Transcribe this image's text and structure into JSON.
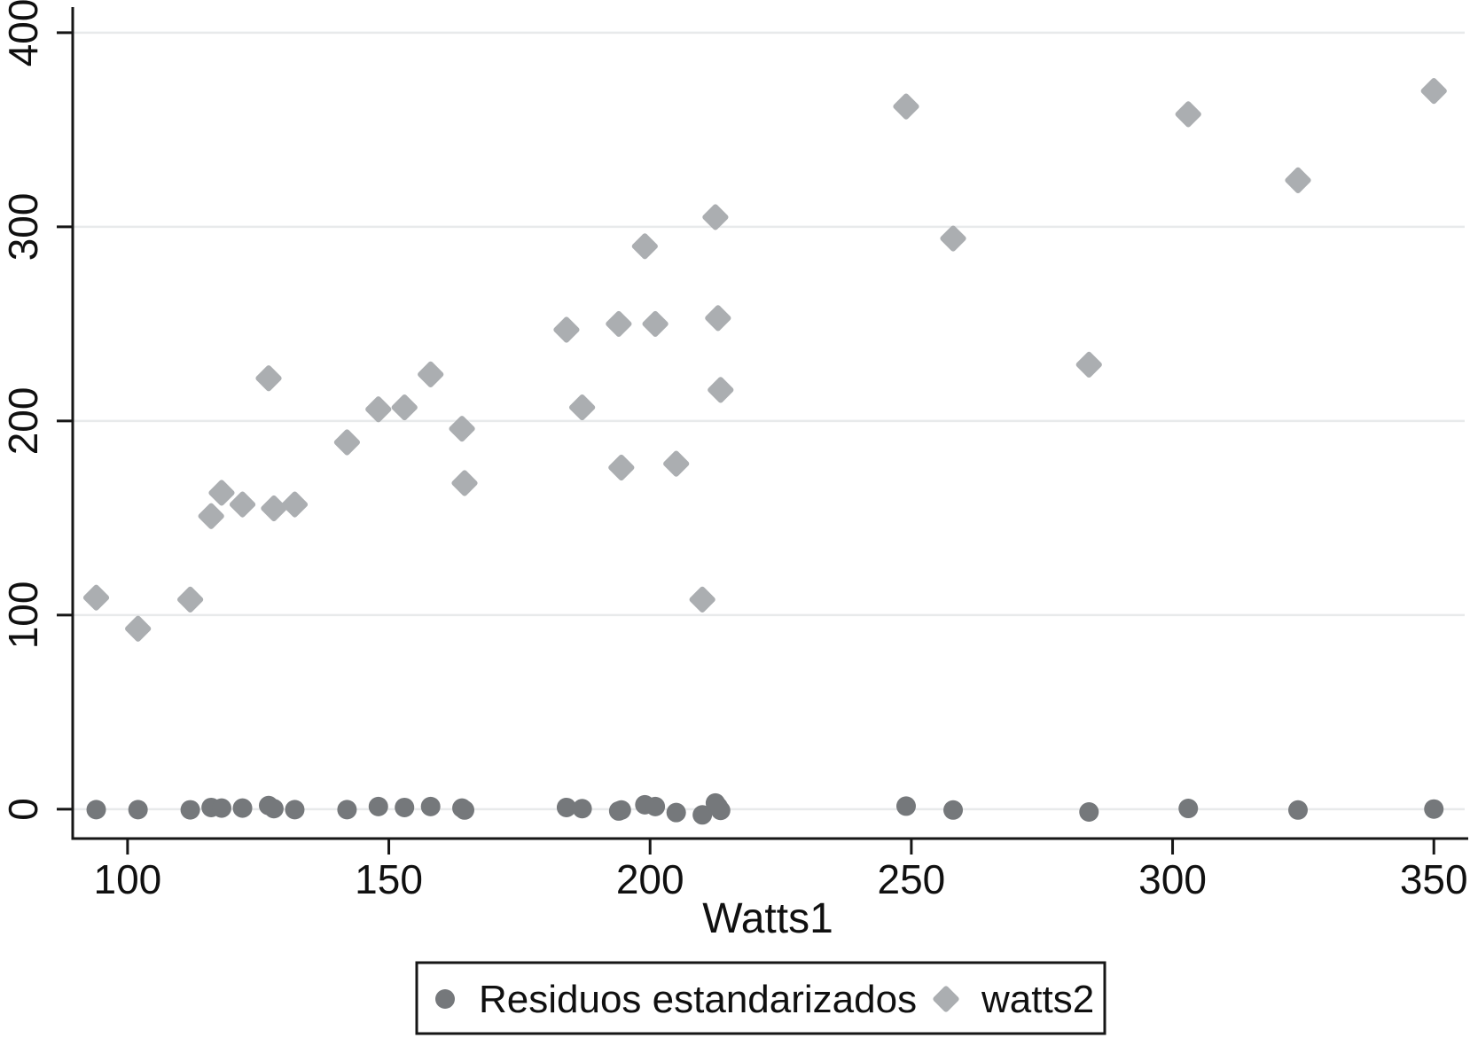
{
  "figure": {
    "background": "#ffffff",
    "axis_color": "#161616",
    "gridline_color": "#e8eaeb",
    "text_color": "#101010"
  },
  "chart_data": {
    "type": "scatter",
    "title": "",
    "xlabel": "Watts1",
    "ylabel": "",
    "xlim": [
      89.5,
      355.9
    ],
    "ylim": [
      -15.1,
      413.2
    ],
    "x_ticks": [
      100,
      150,
      200,
      250,
      300,
      350
    ],
    "y_ticks": [
      0,
      100,
      200,
      300,
      400
    ],
    "grid": "horizontal-only",
    "legend_position": "bottom-center",
    "series": [
      {
        "name": "Residuos estandarizados",
        "marker": "circle",
        "color": "#75787b",
        "points": [
          [
            94,
            -0.2
          ],
          [
            102,
            -0.2
          ],
          [
            112,
            -0.3
          ],
          [
            116,
            0.9
          ],
          [
            118,
            0.6
          ],
          [
            122,
            0.6
          ],
          [
            127,
            1.9
          ],
          [
            128,
            0.3
          ],
          [
            132,
            -0.2
          ],
          [
            142,
            -0.2
          ],
          [
            148,
            1.4
          ],
          [
            153,
            0.9
          ],
          [
            158,
            1.4
          ],
          [
            164,
            0.6
          ],
          [
            164.5,
            -0.4
          ],
          [
            184,
            0.9
          ],
          [
            187,
            0.3
          ],
          [
            194,
            -0.9
          ],
          [
            194.5,
            -0.4
          ],
          [
            199,
            2.3
          ],
          [
            201,
            1.4
          ],
          [
            205,
            -1.7
          ],
          [
            210,
            -2.9
          ],
          [
            212.5,
            3.2
          ],
          [
            213,
            1.4
          ],
          [
            213.5,
            -0.6
          ],
          [
            249,
            1.6
          ],
          [
            258,
            -0.4
          ],
          [
            284,
            -1.4
          ],
          [
            303,
            0.4
          ],
          [
            324,
            -0.4
          ],
          [
            350,
            0.1
          ]
        ]
      },
      {
        "name": "watts2",
        "marker": "diamond",
        "color": "#abaeb1",
        "points": [
          [
            94,
            109
          ],
          [
            102,
            93
          ],
          [
            112,
            108
          ],
          [
            116,
            151
          ],
          [
            118,
            163
          ],
          [
            122,
            157
          ],
          [
            127,
            222
          ],
          [
            128,
            155
          ],
          [
            132,
            157
          ],
          [
            142,
            189
          ],
          [
            148,
            206
          ],
          [
            153,
            207
          ],
          [
            158,
            224
          ],
          [
            164,
            196
          ],
          [
            164.5,
            168
          ],
          [
            184,
            247
          ],
          [
            187,
            207
          ],
          [
            194,
            250
          ],
          [
            194.5,
            176
          ],
          [
            199,
            290
          ],
          [
            201,
            250
          ],
          [
            205,
            178
          ],
          [
            210,
            108
          ],
          [
            212.5,
            305
          ],
          [
            213,
            253
          ],
          [
            213.5,
            216
          ],
          [
            249,
            362
          ],
          [
            258,
            294
          ],
          [
            284,
            229
          ],
          [
            303,
            358
          ],
          [
            324,
            324
          ],
          [
            350,
            370
          ]
        ]
      }
    ]
  }
}
